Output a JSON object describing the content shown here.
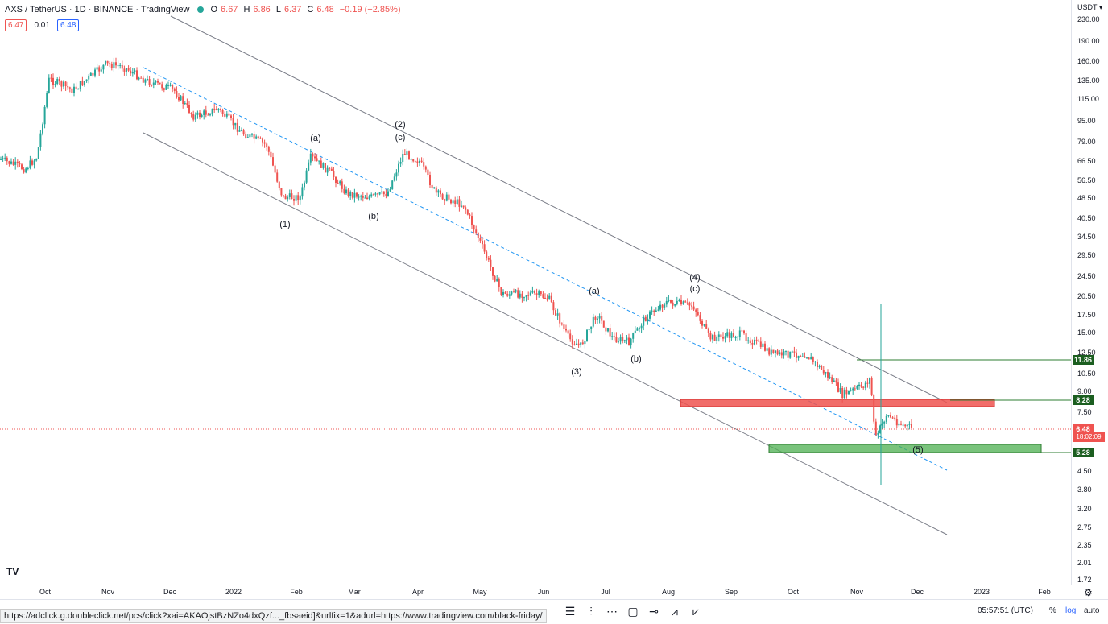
{
  "header": {
    "symbol": "AXS / TetherUS · 1D · BINANCE · TradingView",
    "open_key": "O",
    "open": "6.67",
    "high_key": "H",
    "high": "6.86",
    "low_key": "L",
    "low": "6.37",
    "close_key": "C",
    "close": "6.48",
    "change": "−0.19 (−2.85%)"
  },
  "pills": {
    "bid": "6.47",
    "spread": "0.01",
    "ask": "6.48"
  },
  "yaxis": {
    "currency": "USDT",
    "ticks": [
      "230.00",
      "190.00",
      "160.00",
      "135.00",
      "115.00",
      "95.00",
      "79.00",
      "66.50",
      "56.50",
      "48.50",
      "40.50",
      "34.50",
      "29.50",
      "24.50",
      "20.50",
      "17.50",
      "15.00",
      "12.50",
      "10.50",
      "9.00",
      "7.50",
      "4.50",
      "3.80",
      "3.20",
      "2.75",
      "2.35",
      "2.01",
      "1.72"
    ],
    "tags": {
      "top_level": "11.86",
      "resistance": "8.28",
      "price": "6.48",
      "countdown": "18:02:09",
      "support": "5.28"
    }
  },
  "xaxis": {
    "ticks": [
      "Oct",
      "Nov",
      "Dec",
      "2022",
      "Feb",
      "Mar",
      "Apr",
      "May",
      "Jun",
      "Jul",
      "Aug",
      "Sep",
      "Oct",
      "Nov",
      "Dec",
      "2023",
      "Feb"
    ]
  },
  "labels": {
    "w1": "(1)",
    "w2": "(2)",
    "w2c": "(c)",
    "w3": "(3)",
    "w4": "(4)",
    "w4c": "(c)",
    "w5": "(5)",
    "a1": "(a)",
    "b1": "(b)",
    "a2": "(a)",
    "b2": "(b)"
  },
  "status": {
    "url": "https://adclick.g.doubleclick.net/pcs/click?xai=AKAOjstBzNZo4dxQzf..._fbsaeid]&urlfix=1&adurl=https://www.tradingview.com/black-friday/",
    "clock": "05:57:51 (UTC)",
    "percent": "%",
    "log": "log",
    "auto": "auto"
  },
  "colors": {
    "up": "#26a69a",
    "down": "#ef5350",
    "channel": "#787b86",
    "mid": "#2196f3",
    "red_zone": "#ef5350",
    "green_zone": "#4caf50"
  }
}
